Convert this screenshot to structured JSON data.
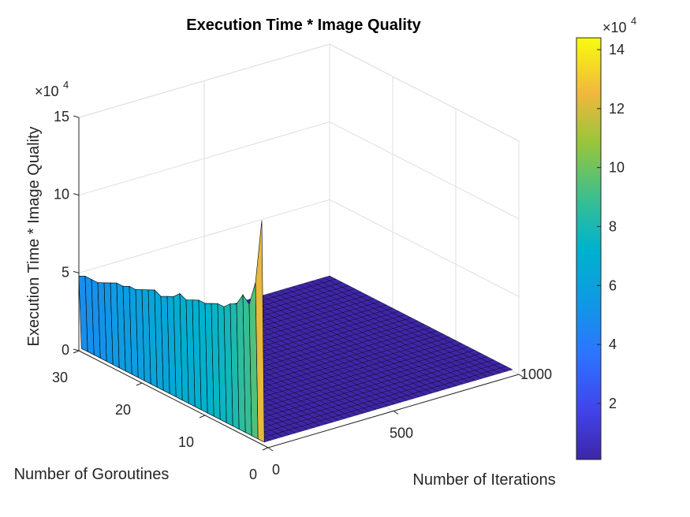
{
  "chart_data": {
    "type": "surface",
    "title": "Execution Time * Image Quality",
    "xlabel": "Number of Iterations",
    "ylabel": "Number of Goroutines",
    "zlabel": "Execution Time * Image Quality",
    "xlim": [
      0,
      1000
    ],
    "ylim": [
      0,
      30
    ],
    "zlim": [
      0,
      150000
    ],
    "xticks": [
      "0",
      "500",
      "1000"
    ],
    "yticks": [
      "0",
      "10",
      "20",
      "30"
    ],
    "zticks": [
      "0",
      "5",
      "10",
      "15"
    ],
    "z_exponent_label": "×10",
    "z_exponent_power": "4",
    "colorbar": {
      "ticks": [
        "2",
        "4",
        "6",
        "8",
        "10",
        "12",
        "14"
      ],
      "tick_values": [
        20000,
        40000,
        60000,
        80000,
        100000,
        120000,
        140000
      ],
      "range": [
        1000,
        144000
      ],
      "exponent_label": "×10",
      "exponent_power": "4",
      "colormap": "parula"
    },
    "grid": true,
    "surface": {
      "description": "values at iterations = 0 for each goroutine count; all other cells near zero",
      "goroutines": [
        1,
        2,
        3,
        4,
        5,
        6,
        7,
        8,
        9,
        10,
        11,
        12,
        13,
        14,
        15,
        16,
        17,
        18,
        19,
        20,
        21,
        22,
        23,
        24,
        25,
        26,
        27,
        28,
        29,
        30
      ],
      "z_at_min_iterations": [
        144000,
        102000,
        86000,
        90000,
        82000,
        80000,
        76000,
        76000,
        74000,
        72000,
        72000,
        70000,
        68000,
        70000,
        66000,
        64000,
        62000,
        64000,
        62000,
        60000,
        58000,
        58000,
        56000,
        56000,
        54000,
        52000,
        50000,
        50000,
        50000,
        48000
      ],
      "z_elsewhere": 1000
    }
  },
  "colors": {
    "low": "#3e26a8",
    "mid": "#00b2a1",
    "high": "#f9fb0e",
    "edge": "#000000",
    "grid": "#dfdfdf"
  }
}
